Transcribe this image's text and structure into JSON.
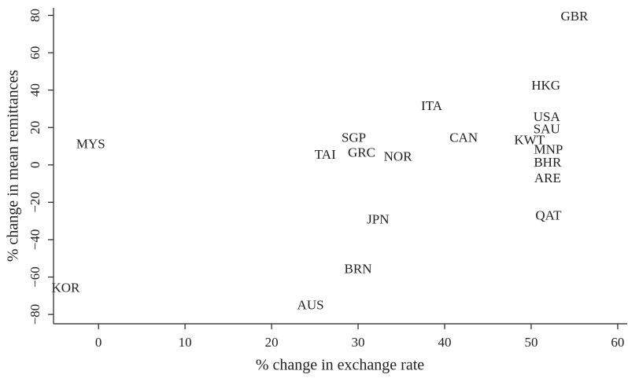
{
  "chart_data": {
    "type": "scatter",
    "x_label": "% change in exchange rate",
    "y_label": "% change in mean remittances",
    "labels": [
      "GBR",
      "HKG",
      "ITA",
      "USA",
      "SAU",
      "CAN",
      "KWT",
      "MNP",
      "MYS",
      "SGP",
      "TAI",
      "GRC",
      "NOR",
      "BHR",
      "ARE",
      "QAT",
      "JPN",
      "BRN",
      "KOR",
      "AUS"
    ],
    "x": [
      55,
      51.7,
      38.5,
      51.8,
      51.8,
      42.2,
      49.8,
      52,
      -0.9,
      29.5,
      26.2,
      30.4,
      34.6,
      51.9,
      51.9,
      52,
      32.3,
      30,
      -3.8,
      24.5
    ],
    "values": [
      79,
      42,
      31,
      25,
      18.5,
      14,
      12.6,
      7.6,
      10.5,
      14,
      5,
      5.9,
      3.8,
      0.8,
      -7.6,
      -27.7,
      -29.8,
      -56.3,
      -66.4,
      -75.6
    ],
    "color": "#222222",
    "xlim": [
      -5.2,
      61.1
    ],
    "ylim": [
      -85,
      84
    ],
    "xticks": [
      0,
      10,
      20,
      30,
      40,
      50,
      60
    ],
    "yticks": [
      {
        "value": -80,
        "label": "−80"
      },
      {
        "value": -60,
        "label": "−60"
      },
      {
        "value": -40,
        "label": "−40"
      },
      {
        "value": -20,
        "label": "−20"
      },
      0,
      20,
      40,
      60,
      80
    ],
    "grid": false
  }
}
